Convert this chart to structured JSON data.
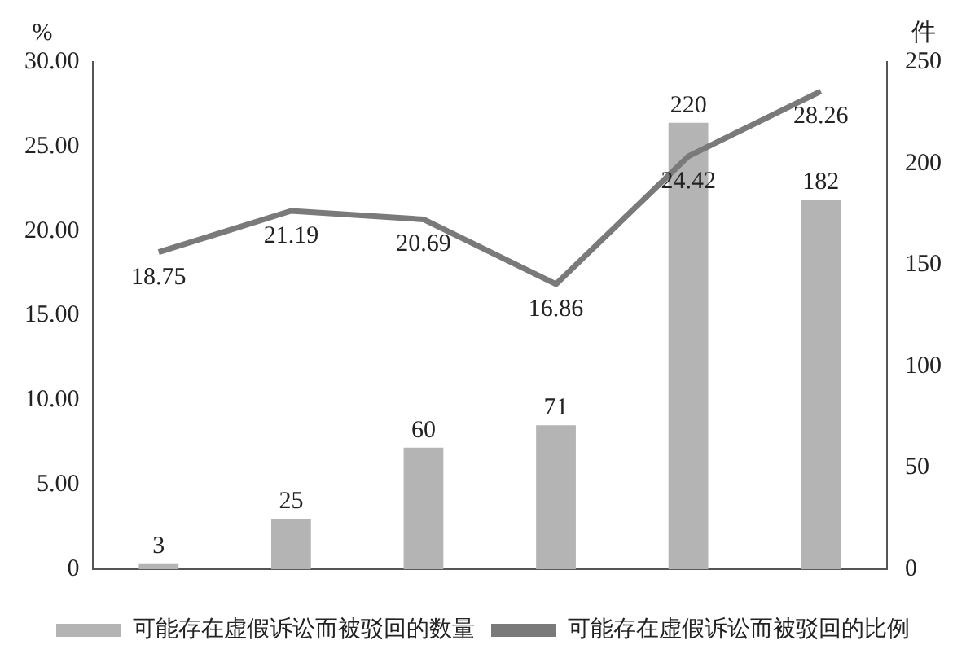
{
  "chart_data": {
    "type": "bar",
    "ylabel": "%",
    "y2label": "件",
    "categories": [
      null,
      null,
      null,
      null,
      null,
      null
    ],
    "series": [
      {
        "name": "可能存在虚假诉讼而被驳回的数量",
        "axis": "y2",
        "color": "#b4b4b4",
        "values": [
          3,
          25,
          60,
          71,
          220,
          182
        ]
      },
      {
        "name": "可能存在虚假诉讼而被驳回的比例",
        "type": "line",
        "color": "#7a7a7a",
        "values": [
          18.75,
          21.19,
          20.69,
          16.86,
          24.42,
          28.26
        ]
      }
    ],
    "ylim": [
      0,
      30
    ],
    "yticks": [
      {
        "value": 0,
        "label": "0"
      },
      {
        "value": 5,
        "label": "5.00"
      },
      {
        "value": 10,
        "label": "10.00"
      },
      {
        "value": 15,
        "label": "15.00"
      },
      {
        "value": 20,
        "label": "20.00"
      },
      {
        "value": 25,
        "label": "25.00"
      },
      {
        "value": 30,
        "label": "30.00"
      }
    ],
    "y2lim": [
      0,
      250
    ],
    "y2ticks": [
      0,
      50,
      100,
      150,
      200,
      250
    ],
    "data_labels": true,
    "legend": "bottom",
    "grid": false,
    "marker": "none",
    "line_style": "solid"
  }
}
